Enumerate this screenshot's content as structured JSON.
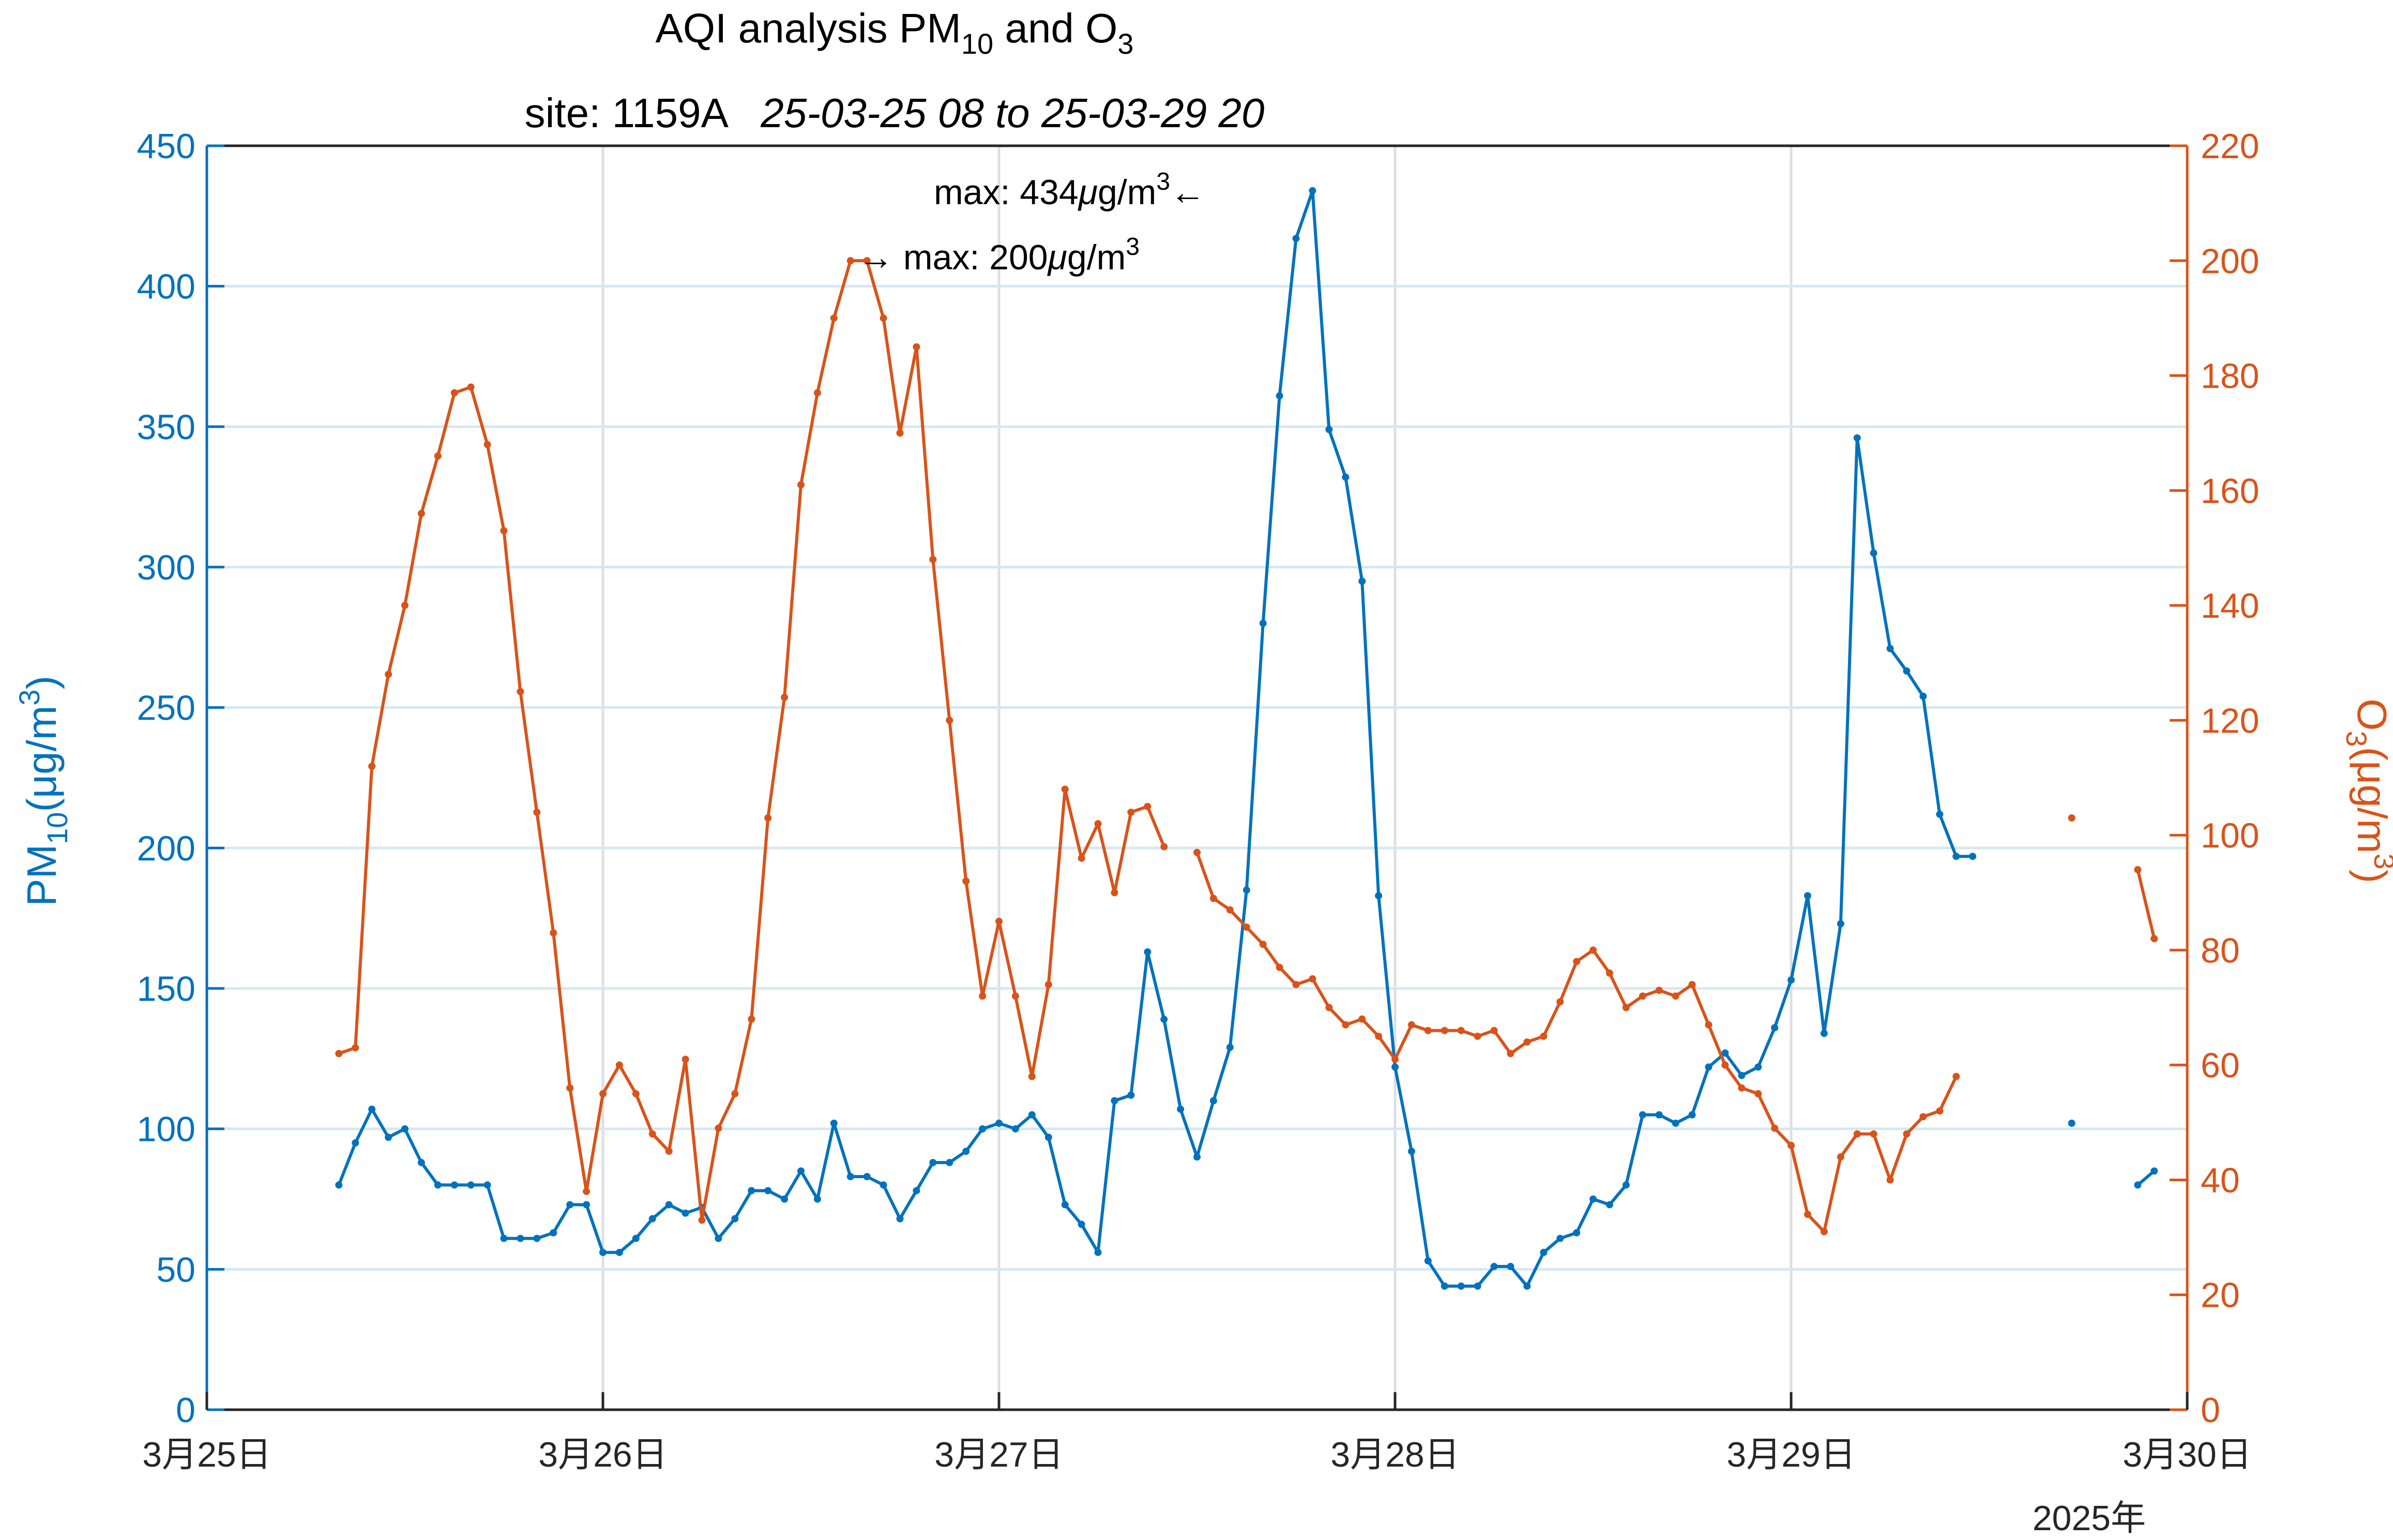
{
  "chart_data": {
    "type": "line",
    "title": "AQI analysis PM₁₀ and O₃",
    "title_parts": {
      "prefix": "AQI analysis PM",
      "sub1": "10",
      "middle": " and O",
      "sub2": "3"
    },
    "subtitle_site": "site: 1159A",
    "subtitle_range": "25-03-25 08 to 25-03-29 20",
    "x_tick_labels": [
      "3月25日",
      "3月26日",
      "3月27日",
      "3月28日",
      "3月29日",
      "3月30日"
    ],
    "x_secondary_label": "2025年",
    "x_range_hours": [
      0,
      120
    ],
    "x_start_hour_offset": 8,
    "left_axis": {
      "label": "PM₁₀(μg/m³)",
      "label_parts": {
        "base": "PM",
        "sub": "10",
        "unit": "(μg/m",
        "sup": "3",
        "close": ")"
      },
      "ylim": [
        0,
        450
      ],
      "ticks": [
        0,
        50,
        100,
        150,
        200,
        250,
        300,
        350,
        400,
        450
      ],
      "color": "#0072BD"
    },
    "right_axis": {
      "label": "O₃(μg/m³)",
      "label_parts": {
        "base": "O",
        "sub": "3",
        "unit": "(μg/m",
        "sup": "3",
        "close": ")"
      },
      "ylim": [
        0,
        220
      ],
      "ticks": [
        0,
        20,
        40,
        60,
        80,
        100,
        120,
        140,
        160,
        180,
        200,
        220
      ],
      "color": "#D95319"
    },
    "grid": true,
    "series": [
      {
        "name": "PM₁₀",
        "axis": "left",
        "color": "#0072BD",
        "values": [
          80,
          95,
          107,
          97,
          100,
          88,
          80,
          80,
          80,
          80,
          61,
          61,
          61,
          63,
          73,
          73,
          56,
          56,
          61,
          68,
          73,
          70,
          72,
          61,
          68,
          78,
          78,
          75,
          85,
          75,
          102,
          83,
          83,
          80,
          68,
          78,
          88,
          88,
          92,
          100,
          102,
          100,
          105,
          97,
          73,
          66,
          56,
          110,
          112,
          163,
          139,
          107,
          90,
          110,
          129,
          185,
          280,
          361,
          417,
          434,
          349,
          332,
          295,
          183,
          122,
          92,
          53,
          44,
          44,
          44,
          51,
          51,
          44,
          56,
          61,
          63,
          75,
          73,
          80,
          105,
          105,
          102,
          105,
          122,
          127,
          119,
          122,
          136,
          153,
          183,
          134,
          173,
          346,
          305,
          271,
          263,
          254,
          212,
          197,
          197,
          null,
          null,
          null,
          null,
          null,
          102,
          null,
          null,
          null,
          80,
          85
        ]
      },
      {
        "name": "O₃",
        "axis": "right",
        "color": "#D95319",
        "values": [
          62,
          63,
          112,
          128,
          140,
          156,
          166,
          177,
          178,
          168,
          153,
          125,
          104,
          83,
          56,
          38,
          55,
          60,
          55,
          48,
          45,
          61,
          33,
          49,
          55,
          68,
          103,
          124,
          161,
          177,
          190,
          200,
          200,
          190,
          170,
          185,
          148,
          120,
          92,
          72,
          85,
          72,
          58,
          74,
          108,
          96,
          102,
          90,
          104,
          105,
          98,
          null,
          97,
          89,
          87,
          84,
          81,
          77,
          74,
          75,
          70,
          67,
          68,
          65,
          61,
          67,
          66,
          66,
          66,
          65,
          66,
          62,
          64,
          65,
          71,
          78,
          80,
          76,
          70,
          72,
          73,
          72,
          74,
          67,
          60,
          56,
          55,
          49,
          46,
          34,
          31,
          44,
          48,
          48,
          40,
          48,
          51,
          52,
          58,
          null,
          null,
          null,
          null,
          null,
          null,
          103,
          null,
          null,
          null,
          94,
          82
        ]
      }
    ],
    "annotations": [
      {
        "text_prefix": "max: 434",
        "mu": "μ",
        "unit": "g/m",
        "sup": "3",
        "arrow": "←",
        "series": "PM₁₀",
        "value": 434
      },
      {
        "arrow": "→",
        "text_prefix": " max: 200",
        "mu": "μ",
        "unit": "g/m",
        "sup": "3",
        "series": "O₃",
        "value": 200
      }
    ]
  }
}
